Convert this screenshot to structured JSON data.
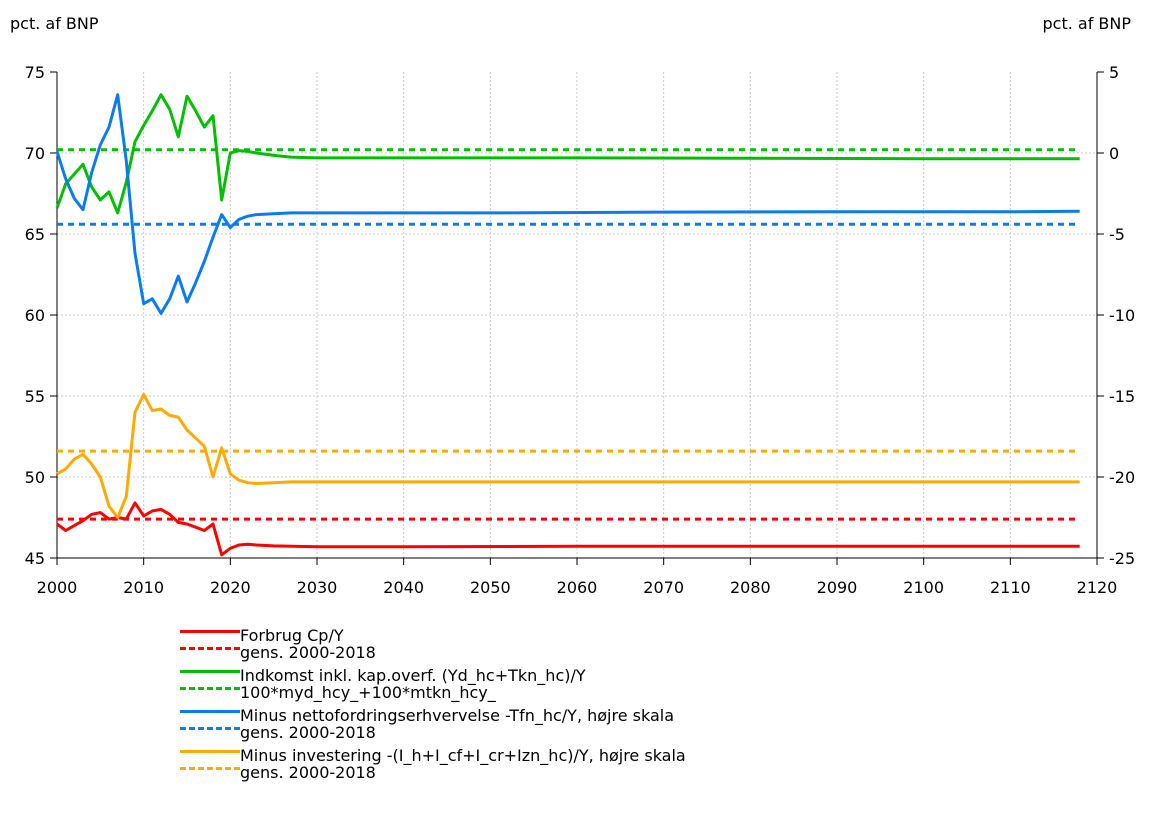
{
  "chart_data": {
    "type": "line",
    "left_axis_unit": "pct. af BNP",
    "right_axis_unit": "pct. af BNP",
    "xlim": [
      2000,
      2120
    ],
    "x_ticks": [
      2000,
      2010,
      2020,
      2030,
      2040,
      2050,
      2060,
      2070,
      2080,
      2090,
      2100,
      2110,
      2120
    ],
    "ylim_left": [
      45,
      75
    ],
    "y_ticks_left": [
      45,
      50,
      55,
      60,
      65,
      70,
      75
    ],
    "ylim_right": [
      -25,
      5
    ],
    "y_ticks_right": [
      -25,
      -20,
      -15,
      -10,
      -5,
      0,
      5
    ],
    "grid": true,
    "legend_position": "bottom",
    "colors": {
      "red": "#ff0000",
      "green": "#00bf00",
      "blue": "#0a7cf0",
      "orange": "#ffaa00"
    },
    "series": [
      {
        "name": "Forbrug Cp/Y",
        "axis": "left",
        "style": "solid",
        "color": "#ff0000",
        "points": [
          [
            2000,
            47.1
          ],
          [
            2001,
            46.7
          ],
          [
            2002,
            47.0
          ],
          [
            2003,
            47.3
          ],
          [
            2004,
            47.7
          ],
          [
            2005,
            47.8
          ],
          [
            2006,
            47.4
          ],
          [
            2007,
            47.5
          ],
          [
            2008,
            47.4
          ],
          [
            2009,
            48.4
          ],
          [
            2010,
            47.6
          ],
          [
            2011,
            47.9
          ],
          [
            2012,
            48.0
          ],
          [
            2013,
            47.7
          ],
          [
            2014,
            47.2
          ],
          [
            2015,
            47.1
          ],
          [
            2016,
            46.9
          ],
          [
            2017,
            46.7
          ],
          [
            2018,
            47.1
          ],
          [
            2019,
            45.2
          ],
          [
            2020,
            45.6
          ],
          [
            2021,
            45.8
          ],
          [
            2022,
            45.85
          ],
          [
            2023,
            45.8
          ],
          [
            2025,
            45.75
          ],
          [
            2030,
            45.7
          ],
          [
            2040,
            45.7
          ],
          [
            2060,
            45.72
          ],
          [
            2080,
            45.72
          ],
          [
            2100,
            45.72
          ],
          [
            2118,
            45.72
          ]
        ]
      },
      {
        "name": "gens. 2000-2018",
        "axis": "left",
        "style": "dashed",
        "color": "#ff0000",
        "points": [
          [
            2000,
            47.4
          ],
          [
            2118,
            47.4
          ]
        ]
      },
      {
        "name": "Indkomst inkl. kap.overf. (Yd_hc+Tkn_hc)/Y",
        "axis": "left",
        "style": "solid",
        "color": "#00bf00",
        "points": [
          [
            2000,
            66.6
          ],
          [
            2001,
            68.1
          ],
          [
            2002,
            68.7
          ],
          [
            2003,
            69.3
          ],
          [
            2004,
            67.9
          ],
          [
            2005,
            67.1
          ],
          [
            2006,
            67.6
          ],
          [
            2007,
            66.3
          ],
          [
            2008,
            68.2
          ],
          [
            2009,
            70.7
          ],
          [
            2010,
            71.7
          ],
          [
            2011,
            72.6
          ],
          [
            2012,
            73.6
          ],
          [
            2013,
            72.7
          ],
          [
            2014,
            71.0
          ],
          [
            2015,
            73.5
          ],
          [
            2016,
            72.6
          ],
          [
            2017,
            71.6
          ],
          [
            2018,
            72.3
          ],
          [
            2019,
            67.1
          ],
          [
            2020,
            70.0
          ],
          [
            2021,
            70.15
          ],
          [
            2022,
            70.1
          ],
          [
            2023,
            70.0
          ],
          [
            2025,
            69.85
          ],
          [
            2027,
            69.75
          ],
          [
            2030,
            69.7
          ],
          [
            2040,
            69.7
          ],
          [
            2060,
            69.7
          ],
          [
            2080,
            69.68
          ],
          [
            2100,
            69.65
          ],
          [
            2118,
            69.65
          ]
        ]
      },
      {
        "name": "100*myd_hcy_+100*mtkn_hcy_",
        "axis": "left",
        "style": "dashed",
        "color": "#00bf00",
        "points": [
          [
            2000,
            70.2
          ],
          [
            2118,
            70.2
          ]
        ]
      },
      {
        "name": "Minus nettofordringserhvervelse -Tfn_hc/Y, højre skala",
        "axis": "right",
        "style": "solid",
        "color": "#0a7cf0",
        "points": [
          [
            2000,
            0.1
          ],
          [
            2001,
            -1.6
          ],
          [
            2002,
            -2.8
          ],
          [
            2003,
            -3.5
          ],
          [
            2004,
            -1.2
          ],
          [
            2005,
            0.5
          ],
          [
            2006,
            1.6
          ],
          [
            2007,
            3.6
          ],
          [
            2008,
            -0.5
          ],
          [
            2009,
            -6.2
          ],
          [
            2010,
            -9.3
          ],
          [
            2011,
            -9.0
          ],
          [
            2012,
            -9.9
          ],
          [
            2013,
            -9.0
          ],
          [
            2014,
            -7.6
          ],
          [
            2015,
            -9.2
          ],
          [
            2016,
            -8.0
          ],
          [
            2017,
            -6.7
          ],
          [
            2018,
            -5.2
          ],
          [
            2019,
            -3.8
          ],
          [
            2020,
            -4.6
          ],
          [
            2021,
            -4.1
          ],
          [
            2022,
            -3.9
          ],
          [
            2023,
            -3.8
          ],
          [
            2025,
            -3.75
          ],
          [
            2027,
            -3.7
          ],
          [
            2030,
            -3.7
          ],
          [
            2050,
            -3.7
          ],
          [
            2070,
            -3.65
          ],
          [
            2090,
            -3.63
          ],
          [
            2110,
            -3.63
          ],
          [
            2118,
            -3.6
          ]
        ]
      },
      {
        "name": "gens. 2000-2018",
        "axis": "right",
        "style": "dashed",
        "color": "#0a7cf0",
        "points": [
          [
            2000,
            -4.4
          ],
          [
            2118,
            -4.4
          ]
        ]
      },
      {
        "name": "Minus investering -(I_h+I_cf+I_cr+Izn_hc)/Y, højre skala",
        "axis": "right",
        "style": "solid",
        "color": "#ffaa00",
        "points": [
          [
            2000,
            -19.8
          ],
          [
            2001,
            -19.5
          ],
          [
            2002,
            -18.9
          ],
          [
            2003,
            -18.6
          ],
          [
            2004,
            -19.2
          ],
          [
            2005,
            -20.0
          ],
          [
            2006,
            -21.8
          ],
          [
            2007,
            -22.5
          ],
          [
            2008,
            -21.2
          ],
          [
            2009,
            -16.0
          ],
          [
            2010,
            -14.9
          ],
          [
            2011,
            -15.9
          ],
          [
            2012,
            -15.8
          ],
          [
            2013,
            -16.2
          ],
          [
            2014,
            -16.3
          ],
          [
            2015,
            -17.1
          ],
          [
            2016,
            -17.6
          ],
          [
            2017,
            -18.1
          ],
          [
            2018,
            -20.0
          ],
          [
            2019,
            -18.2
          ],
          [
            2020,
            -19.8
          ],
          [
            2021,
            -20.2
          ],
          [
            2022,
            -20.35
          ],
          [
            2023,
            -20.4
          ],
          [
            2025,
            -20.35
          ],
          [
            2027,
            -20.3
          ],
          [
            2030,
            -20.3
          ],
          [
            2040,
            -20.3
          ],
          [
            2060,
            -20.3
          ],
          [
            2080,
            -20.3
          ],
          [
            2100,
            -20.3
          ],
          [
            2118,
            -20.3
          ]
        ]
      },
      {
        "name": "gens. 2000-2018",
        "axis": "right",
        "style": "dashed",
        "color": "#ffaa00",
        "points": [
          [
            2000,
            -18.4
          ],
          [
            2118,
            -18.4
          ]
        ]
      }
    ]
  }
}
